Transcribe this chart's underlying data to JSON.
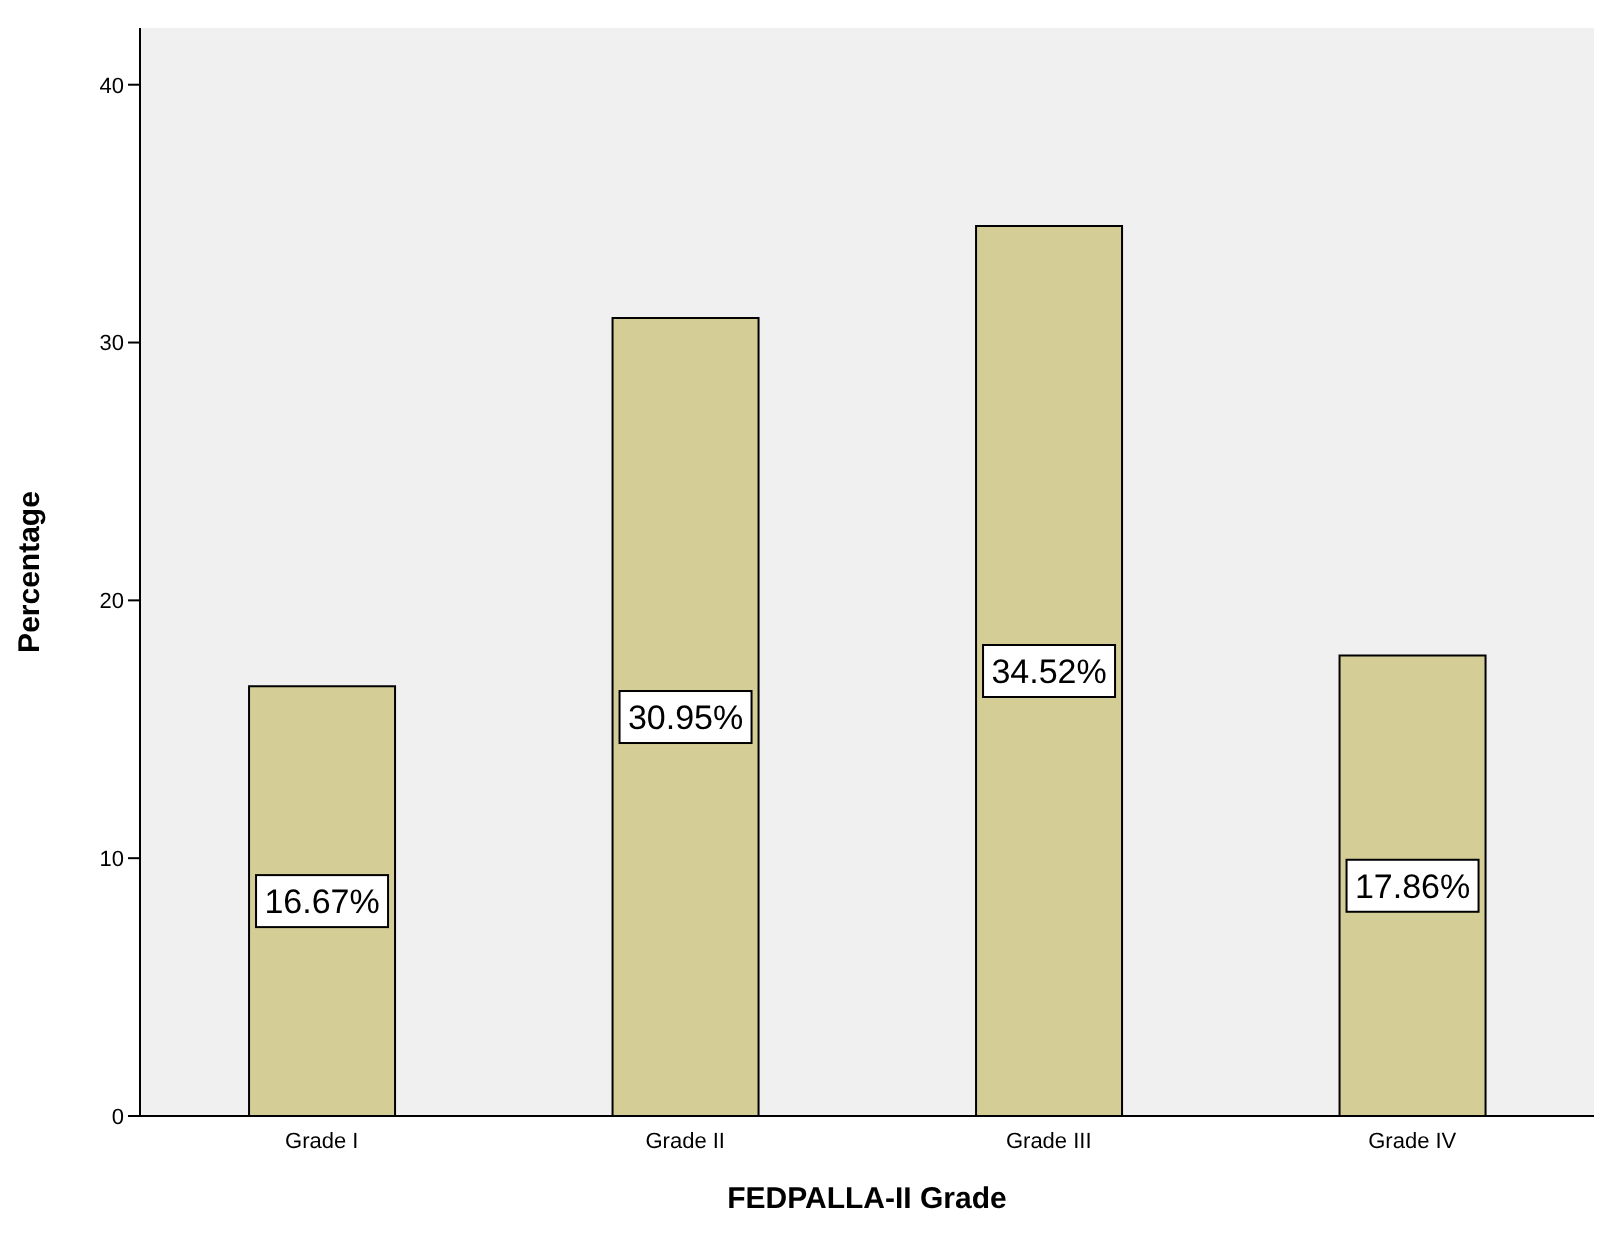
{
  "chart_data": {
    "type": "bar",
    "xlabel": "FEDPALLA-II Grade",
    "ylabel": "Percentage",
    "categories": [
      "Grade I",
      "Grade II",
      "Grade III",
      "Grade IV"
    ],
    "values": [
      16.67,
      30.95,
      34.52,
      17.86
    ],
    "value_labels": [
      "16.67%",
      "30.95%",
      "34.52%",
      "17.86%"
    ],
    "color": "#d4ce96",
    "ylim": [
      0,
      42.2
    ],
    "yticks": [
      0,
      10,
      20,
      30,
      40
    ],
    "grid": false
  }
}
